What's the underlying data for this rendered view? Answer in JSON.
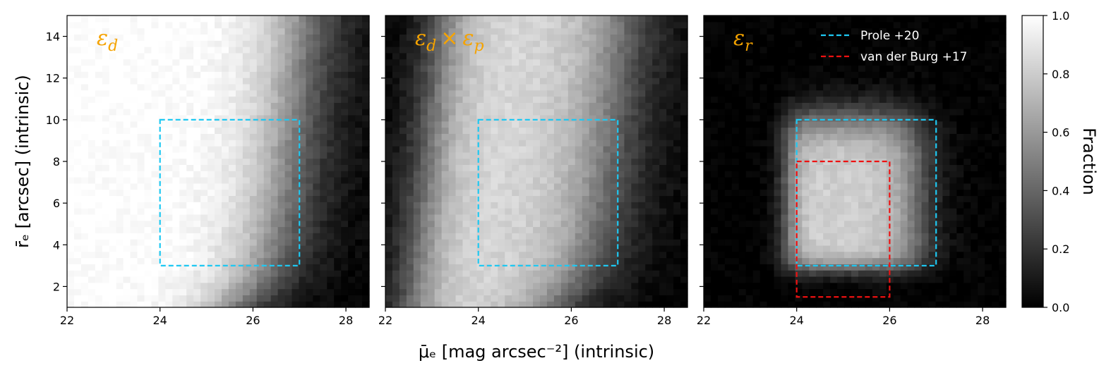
{
  "chart_data": {
    "type": "heatmap",
    "xlabel": "μ̄ₑ [mag arcsec⁻²] (intrinsic)",
    "ylabel": "r̄ₑ [arcsec] (intrinsic)",
    "xlim": [
      22,
      28.5
    ],
    "ylim": [
      1,
      15
    ],
    "x_ticks": [
      22,
      24,
      26,
      28
    ],
    "y_ticks": [
      2,
      4,
      6,
      8,
      10,
      12,
      14
    ],
    "colormap": "gray",
    "colorbar": {
      "label": "Fraction",
      "range": [
        0.0,
        1.0
      ],
      "ticks": [
        "0.0",
        "0.2",
        "0.4",
        "0.6",
        "0.8",
        "1.0"
      ]
    },
    "panels": [
      {
        "label": "εd",
        "label_main": "ε",
        "label_sub": "d",
        "label_parts": [
          [
            "ε",
            "d"
          ]
        ],
        "model": "detection"
      },
      {
        "label": "εd × εp",
        "label_main": "ε",
        "label_sub": "d",
        "label_parts": [
          [
            "ε",
            "d"
          ],
          [
            "ε",
            "p"
          ]
        ],
        "model": "product"
      },
      {
        "label": "εr",
        "label_main": "ε",
        "label_sub": "r",
        "label_parts": [
          [
            "ε",
            "r"
          ]
        ],
        "model": "recovery"
      }
    ],
    "boxes": [
      {
        "name": "Prole +20",
        "color": "#1ec8f2",
        "x": [
          24,
          27
        ],
        "y": [
          3,
          10
        ],
        "panels": [
          0,
          1,
          2
        ]
      },
      {
        "name": "van der Burg +17",
        "color": "#ee1111",
        "x": [
          24,
          26
        ],
        "y": [
          1.5,
          8
        ],
        "panels": [
          2
        ]
      }
    ],
    "legend": {
      "placement": "top-right",
      "panel": 2
    }
  }
}
